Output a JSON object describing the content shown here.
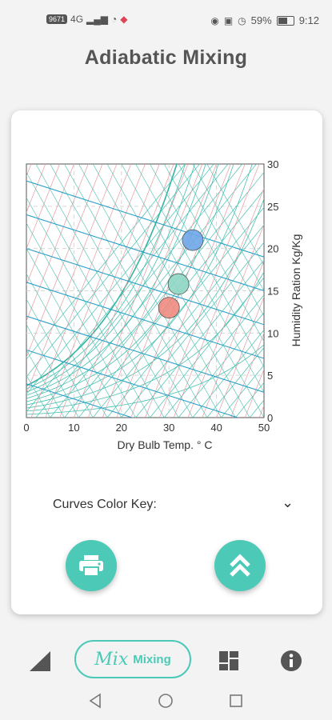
{
  "status_bar": {
    "left_badge": "9671",
    "network": "4G",
    "battery_percent": "59%",
    "time": "9:12"
  },
  "header": {
    "title": "Adiabatic Mixing"
  },
  "chart_data": {
    "type": "scatter",
    "x_label": "Dry Bulb Temp. ° C",
    "y_label": "Humidity Ration Kg/Kg",
    "xlim": [
      0,
      50
    ],
    "ylim": [
      0,
      30
    ],
    "x_ticks": [
      "0",
      "10",
      "20",
      "30",
      "40",
      "50"
    ],
    "y_ticks": [
      "0",
      "5",
      "10",
      "15",
      "20",
      "25",
      "30"
    ],
    "grid": true,
    "series": [
      {
        "points": [
          {
            "x": 35,
            "y": 21
          }
        ],
        "color": "#6fa6e8"
      },
      {
        "points": [
          {
            "x": 32,
            "y": 15.8
          }
        ],
        "color": "#8fd6c4"
      },
      {
        "points": [
          {
            "x": 30,
            "y": 13
          }
        ],
        "color": "#ee8b80"
      }
    ],
    "curve_colors": {
      "main": "#45c0b0",
      "secondary": "#e79aa0",
      "accent": "#2a9fc7"
    }
  },
  "controls": {
    "curves_key_label": "Curves Color Key:"
  },
  "fabs": {
    "print_icon": "printer-icon",
    "scroll_icon": "double-chevron-up-icon"
  },
  "bottom_nav": {
    "item1_icon": "ramp-icon",
    "mix_logo": "Mix",
    "mix_label": "Mixing",
    "item3_icon": "dashboard-icon",
    "item4_icon": "info-icon"
  },
  "colors": {
    "accent": "#4dc9b7",
    "title": "#555555"
  }
}
